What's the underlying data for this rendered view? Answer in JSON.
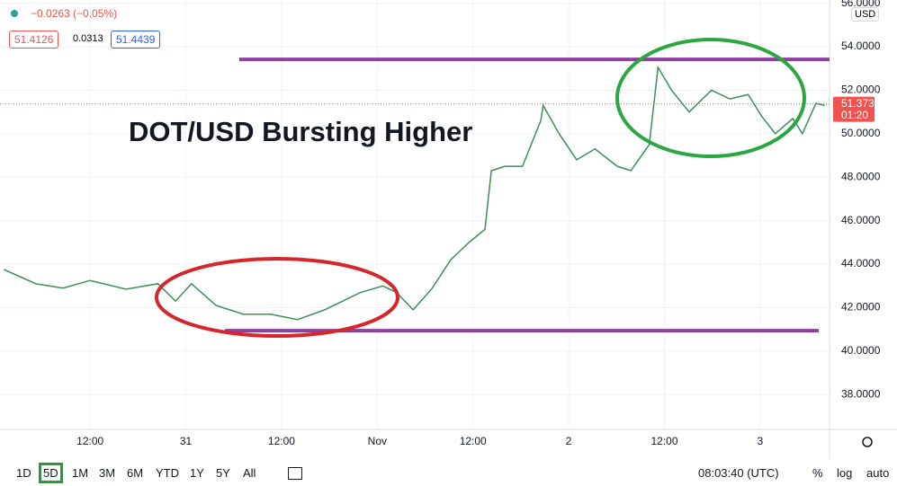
{
  "header": {
    "change": "−0.0263 (−0.05%)",
    "bid": "51.4126",
    "spread": "0.0313",
    "ask": "51.4439",
    "currency": "USD"
  },
  "chart_data": {
    "type": "line",
    "title": "DOT/USD Bursting Higher",
    "color": "#3d8f57",
    "x": [
      1.2,
      5.2,
      8.6,
      12,
      16.5,
      20.5,
      22.7,
      24.7,
      27.8,
      31.2,
      34.6,
      38,
      41.4,
      45.9,
      48.7,
      50.4,
      52.5,
      54.9,
      57.2,
      59.5,
      61.5,
      62.3,
      64,
      66.2,
      68.5,
      68.8,
      70.8,
      73,
      75.3,
      78.1,
      79.8,
      82.1,
      83.2,
      84.9,
      87.1,
      89.9,
      92.2,
      94.5,
      96.2,
      97.9,
      100.1,
      101.3,
      103,
      104.1
    ],
    "values": [
      43.75,
      43.1,
      42.9,
      43.25,
      42.85,
      43.1,
      42.3,
      43.1,
      42.1,
      41.7,
      41.7,
      41.45,
      41.9,
      42.7,
      43.0,
      42.7,
      41.9,
      42.9,
      44.2,
      45.0,
      45.6,
      48.3,
      48.5,
      48.5,
      50.6,
      51.3,
      50.0,
      48.8,
      49.3,
      48.5,
      48.3,
      49.5,
      53.05,
      52.0,
      51.0,
      52.0,
      51.6,
      51.8,
      50.8,
      50.0,
      50.7,
      50.0,
      51.4,
      51.3
    ],
    "xlim": [
      0.7,
      104.7
    ],
    "xticks": [
      {
        "value": 12,
        "label": "12:00"
      },
      {
        "value": 24,
        "label": "31"
      },
      {
        "value": 36,
        "label": "12:00"
      },
      {
        "value": 48,
        "label": "Nov"
      },
      {
        "value": 60,
        "label": "12:00"
      },
      {
        "value": 72,
        "label": "2"
      },
      {
        "value": 84,
        "label": "12:00"
      },
      {
        "value": 96,
        "label": "3"
      }
    ],
    "ylim": [
      36.4,
      56.15
    ],
    "yticks": [
      {
        "value": 38,
        "label": "38.0000"
      },
      {
        "value": 40,
        "label": "40.0000"
      },
      {
        "value": 42,
        "label": "42.0000"
      },
      {
        "value": 44,
        "label": "44.0000"
      },
      {
        "value": 46,
        "label": "46.0000"
      },
      {
        "value": 48,
        "label": "48.0000"
      },
      {
        "value": 50,
        "label": "50.0000"
      },
      {
        "value": 52,
        "label": "52.0000"
      },
      {
        "value": 54,
        "label": "54.0000"
      },
      {
        "value": 56,
        "label": "56.0000"
      }
    ],
    "grid": true,
    "last_price": 51.3736,
    "countdown": "01:20",
    "levels": [
      53.42,
      40.94
    ],
    "level_color": "#8e3fa0"
  },
  "toolbar": {
    "ranges": [
      "1D",
      "5D",
      "1M",
      "3M",
      "6M",
      "YTD",
      "1Y",
      "5Y",
      "All"
    ],
    "clock": "08:03:40 (UTC)",
    "options": [
      "%",
      "log",
      "auto"
    ]
  }
}
